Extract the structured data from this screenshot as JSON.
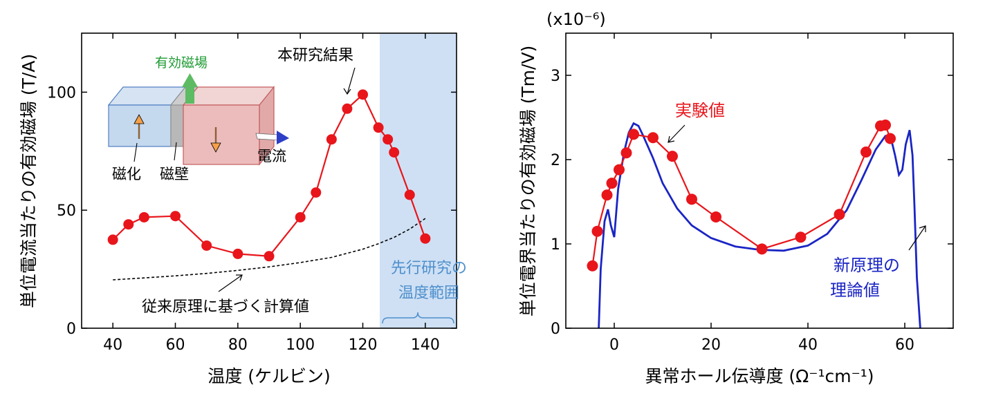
{
  "chart_data": [
    {
      "type": "line",
      "xlabel": "温度 (ケルビン)",
      "ylabel": "単位電流当たりの有効磁場 (T/A)",
      "xlim": [
        30,
        150
      ],
      "ylim": [
        0,
        125
      ],
      "xticks": [
        40,
        60,
        80,
        100,
        120,
        140
      ],
      "yticks": [
        0,
        50,
        100
      ],
      "series": [
        {
          "kind": "measured",
          "color": "#e8151b",
          "x": [
            40,
            45,
            50,
            60,
            70,
            80,
            90,
            100,
            105,
            110,
            115,
            120,
            125,
            128,
            130,
            135,
            140
          ],
          "y": [
            37.5,
            44,
            47,
            47.5,
            35,
            31.5,
            30.5,
            47,
            57.5,
            80,
            93,
            99,
            85,
            80,
            74.5,
            56.5,
            38
          ]
        },
        {
          "kind": "calculated",
          "color": "#000000",
          "x": [
            40,
            50,
            60,
            70,
            80,
            90,
            100,
            110,
            120,
            125,
            130,
            135,
            140
          ],
          "y": [
            20.5,
            21.3,
            22.2,
            23.2,
            24.5,
            26,
            27.8,
            30,
            33.5,
            35.8,
            38.5,
            42,
            46.5
          ]
        }
      ],
      "shaded_region": {
        "x": [
          125,
          150
        ],
        "color": "#cfe0f4"
      },
      "annotations": [
        {
          "text": "本研究結果",
          "x": 117,
          "y": 113
        },
        {
          "text": "従来原理に基づく計算値",
          "x": 92,
          "y": 9
        },
        {
          "text": "先行研究の温度範囲",
          "lines": [
            "先行研究の",
            "温度範囲"
          ],
          "color": "#4d8fcc",
          "x": 137.5,
          "y": 26
        }
      ],
      "inset": {
        "field_label": "有効磁場",
        "current_label": "電流",
        "magnetization_label": "磁化",
        "wall_label": "磁壁"
      }
    },
    {
      "type": "line",
      "xlabel": "異常ホール伝導度 (Ω⁻¹cm⁻¹)",
      "ylabel": "単位電界当たりの有効磁場 (Tm/V)",
      "scale_label": "(x10⁻⁶)",
      "xlim": [
        -10,
        70
      ],
      "ylim": [
        0,
        3.5
      ],
      "xticks": [
        0,
        20,
        40,
        60
      ],
      "yticks": [
        0,
        1,
        2,
        3
      ],
      "series": [
        {
          "name": "実験値",
          "color": "#e8151b",
          "x": [
            -4.5,
            -3.5,
            -1.5,
            -0.5,
            1,
            2.5,
            4,
            8,
            12,
            16,
            21,
            30.5,
            38.5,
            46.5,
            52,
            55,
            56,
            57
          ],
          "y": [
            0.74,
            1.15,
            1.58,
            1.72,
            1.88,
            2.08,
            2.3,
            2.26,
            2.04,
            1.53,
            1.32,
            0.94,
            1.08,
            1.35,
            2.09,
            2.4,
            2.41,
            2.25
          ]
        },
        {
          "name": "新原理の理論値",
          "color": "#1a25c4",
          "x": [
            -3.2,
            -2.8,
            -2,
            -1.3,
            -0.7,
            0,
            0.8,
            2,
            3,
            4,
            5,
            6,
            8,
            10,
            13,
            16,
            20,
            25,
            30,
            35,
            40,
            44,
            48,
            51,
            54,
            56,
            57.2,
            58,
            58.8,
            59.5,
            60.2,
            61,
            61.6,
            62,
            62.5,
            63.2
          ],
          "y": [
            0,
            0.7,
            1.27,
            1.41,
            1.22,
            1.08,
            1.65,
            2.08,
            2.32,
            2.43,
            2.4,
            2.28,
            2.02,
            1.72,
            1.42,
            1.22,
            1.07,
            0.97,
            0.93,
            0.92,
            0.98,
            1.12,
            1.4,
            1.75,
            2.12,
            2.28,
            2.24,
            2.05,
            1.82,
            1.88,
            2.18,
            2.35,
            2.05,
            1.45,
            0.6,
            0
          ]
        }
      ],
      "annotations": [
        {
          "text": "実験値",
          "color": "#e8151b",
          "x": 16,
          "y": 2.58
        },
        {
          "text": "新原理の理論値",
          "lines": [
            "新原理の",
            "理論値"
          ],
          "color": "#1a25c4",
          "x": 56,
          "y": 0.55
        }
      ]
    }
  ]
}
